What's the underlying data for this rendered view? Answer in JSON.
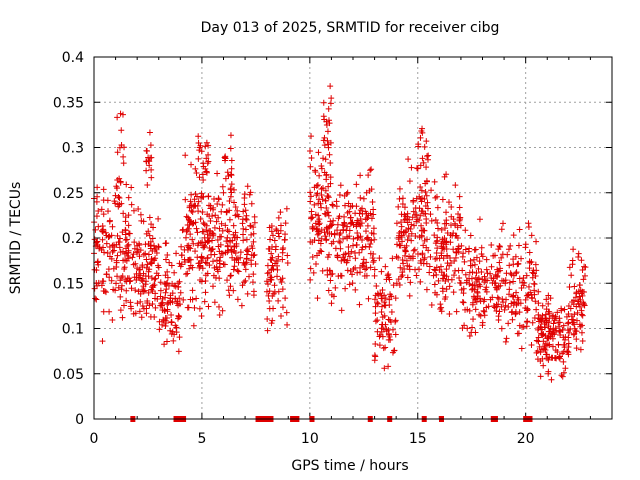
{
  "chart_data": {
    "type": "scatter",
    "title": "Day 013 of 2025, SRMTID for receiver cibg",
    "xlabel": "GPS time / hours",
    "ylabel": "SRMTID / TECUs",
    "xlim": [
      0,
      24
    ],
    "ylim": [
      0,
      0.4
    ],
    "xticks": [
      0,
      5,
      10,
      15,
      20
    ],
    "xtick_labels": [
      "0",
      "5",
      "10",
      "15",
      "20"
    ],
    "yticks": [
      0,
      0.05,
      0.1,
      0.15,
      0.2,
      0.25,
      0.3,
      0.35,
      0.4
    ],
    "ytick_labels": [
      "0",
      "0.05",
      "0.1",
      "0.15",
      "0.2",
      "0.25",
      "0.3",
      "0.35",
      "0.4"
    ],
    "grid": true,
    "marker": "+",
    "color": "#e00000",
    "zero_markers_x": [
      1.8,
      3.8,
      3.95,
      4.05,
      4.15,
      7.6,
      7.75,
      7.85,
      8.0,
      8.2,
      9.2,
      9.4,
      10.1,
      12.8,
      13.7,
      15.3,
      16.1,
      18.5,
      18.6,
      20.0,
      20.1,
      20.2
    ],
    "series": [
      {
        "name": "cibg",
        "segments": [
          {
            "x0": 0.0,
            "x1": 2.0,
            "center": 0.18,
            "spread": 0.06,
            "n": 170
          },
          {
            "x0": 1.0,
            "x1": 1.4,
            "center": 0.28,
            "spread": 0.05,
            "n": 20
          },
          {
            "x0": 2.0,
            "x1": 3.0,
            "center": 0.16,
            "spread": 0.07,
            "n": 100
          },
          {
            "x0": 2.4,
            "x1": 2.7,
            "center": 0.28,
            "spread": 0.03,
            "n": 15
          },
          {
            "x0": 3.0,
            "x1": 4.0,
            "center": 0.13,
            "spread": 0.05,
            "n": 90
          },
          {
            "x0": 4.0,
            "x1": 5.5,
            "center": 0.2,
            "spread": 0.07,
            "n": 150
          },
          {
            "x0": 4.8,
            "x1": 5.3,
            "center": 0.29,
            "spread": 0.03,
            "n": 20
          },
          {
            "x0": 5.5,
            "x1": 7.5,
            "center": 0.19,
            "spread": 0.06,
            "n": 170
          },
          {
            "x0": 6.0,
            "x1": 6.4,
            "center": 0.28,
            "spread": 0.03,
            "n": 15
          },
          {
            "x0": 8.0,
            "x1": 9.0,
            "center": 0.17,
            "spread": 0.06,
            "n": 80
          },
          {
            "x0": 10.0,
            "x1": 11.0,
            "center": 0.22,
            "spread": 0.07,
            "n": 110
          },
          {
            "x0": 10.6,
            "x1": 11.0,
            "center": 0.33,
            "spread": 0.05,
            "n": 18
          },
          {
            "x0": 11.0,
            "x1": 13.0,
            "center": 0.2,
            "spread": 0.06,
            "n": 170
          },
          {
            "x0": 13.0,
            "x1": 14.0,
            "center": 0.12,
            "spread": 0.06,
            "n": 80
          },
          {
            "x0": 14.0,
            "x1": 15.5,
            "center": 0.21,
            "spread": 0.06,
            "n": 140
          },
          {
            "x0": 15.0,
            "x1": 15.5,
            "center": 0.3,
            "spread": 0.03,
            "n": 15
          },
          {
            "x0": 15.5,
            "x1": 17.0,
            "center": 0.19,
            "spread": 0.06,
            "n": 130
          },
          {
            "x0": 17.0,
            "x1": 19.0,
            "center": 0.15,
            "spread": 0.05,
            "n": 150
          },
          {
            "x0": 19.0,
            "x1": 20.5,
            "center": 0.15,
            "spread": 0.05,
            "n": 110
          },
          {
            "x0": 20.5,
            "x1": 22.0,
            "center": 0.09,
            "spread": 0.04,
            "n": 150
          },
          {
            "x0": 22.0,
            "x1": 22.8,
            "center": 0.13,
            "spread": 0.05,
            "n": 70
          }
        ]
      }
    ]
  }
}
